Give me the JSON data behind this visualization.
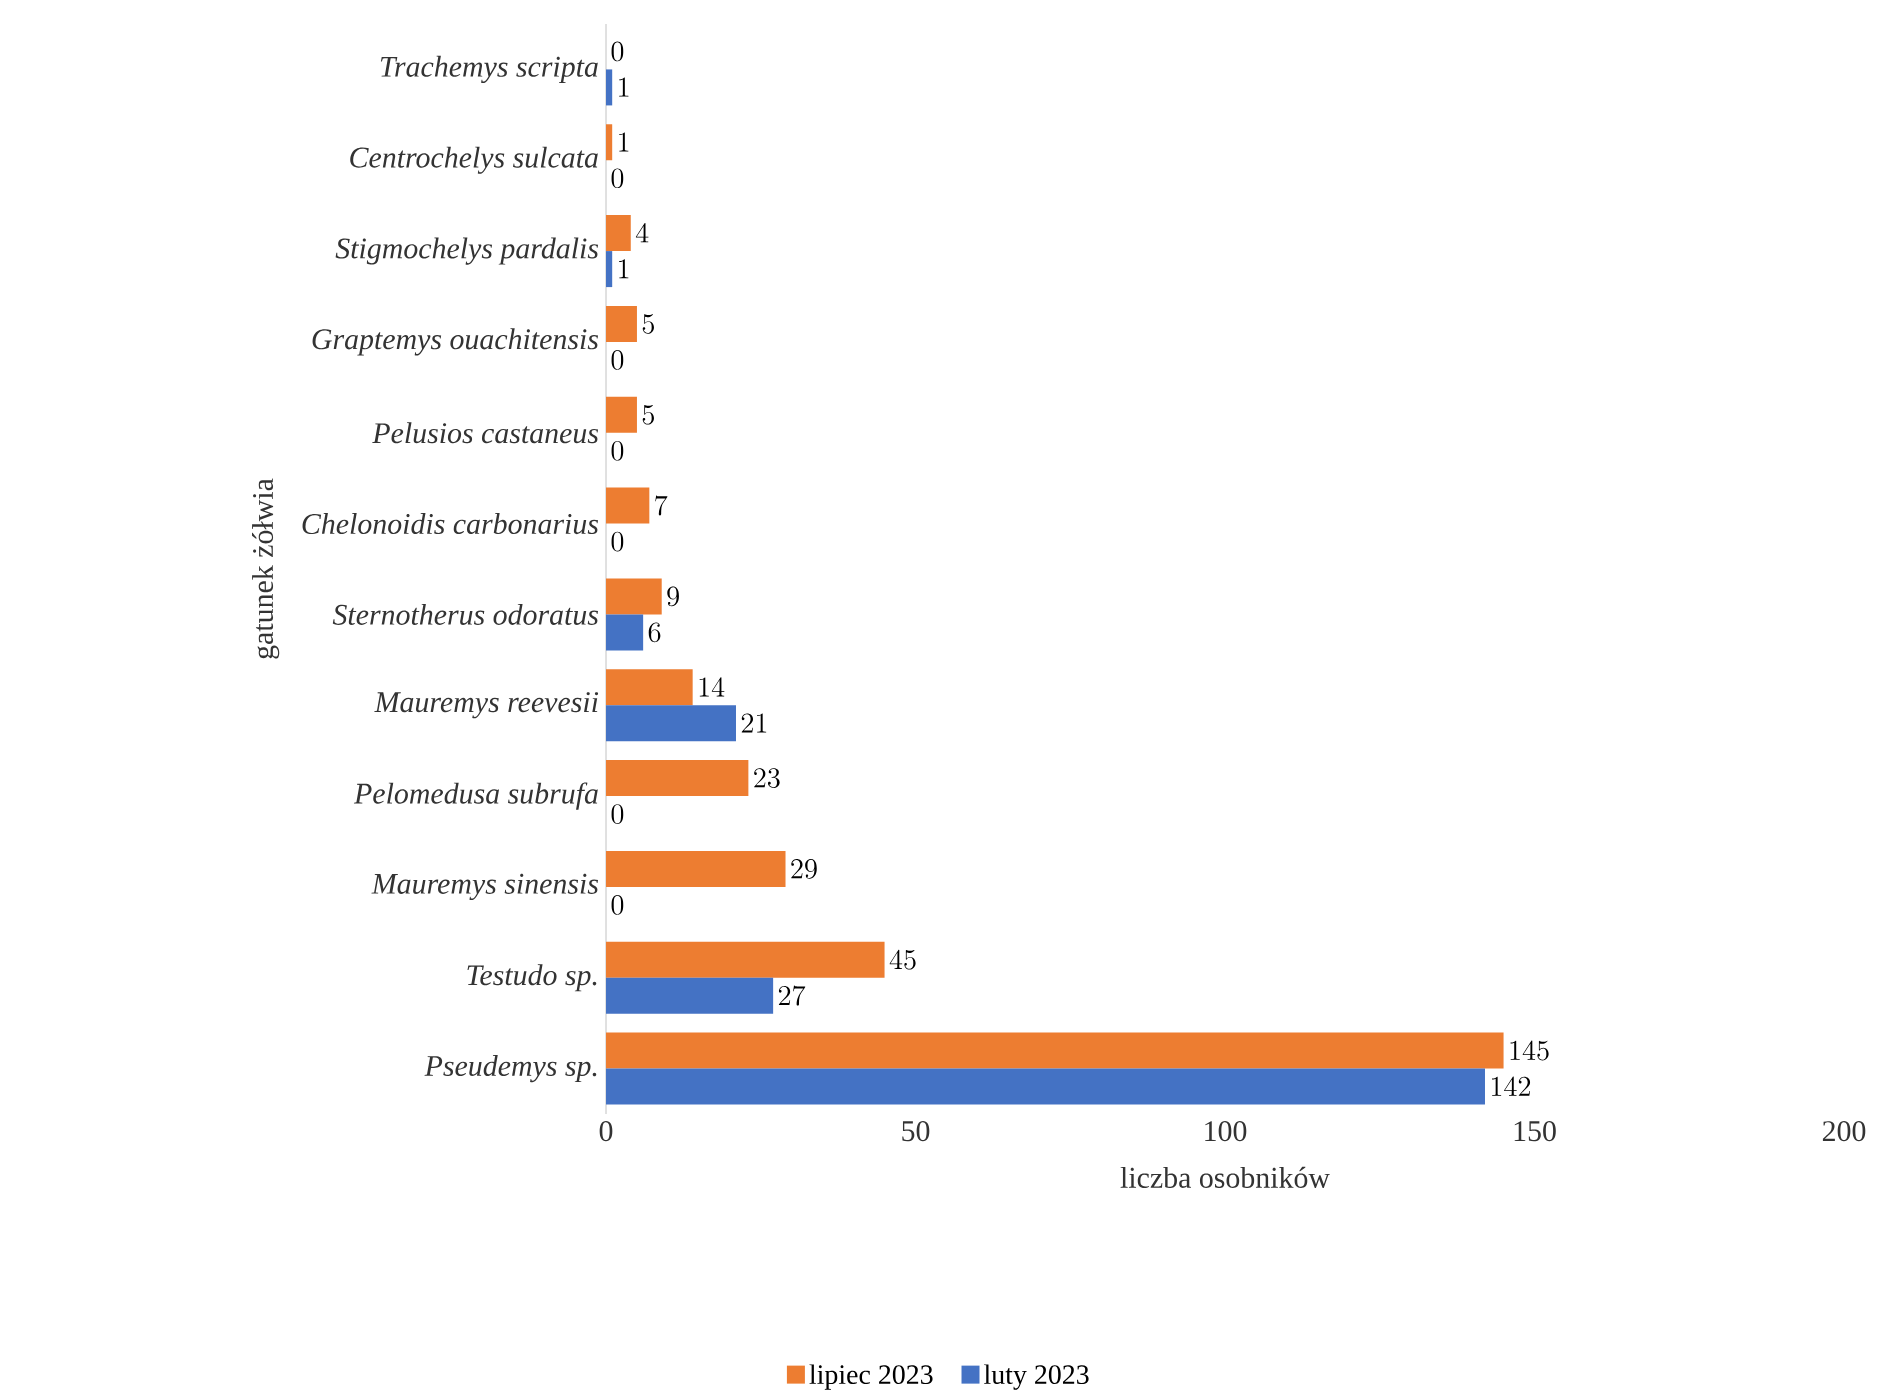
{
  "chart_data": {
    "type": "bar",
    "orientation": "horizontal",
    "xlabel": "liczba osobników",
    "ylabel": "gatunek żółwia",
    "categories": [
      "Trachemys scripta",
      "Centrochelys sulcata",
      "Stigmochelys pardalis",
      "Graptemys ouachitensis",
      "Pelusios castaneus",
      "Chelonoidis carbonarius",
      "Sternotherus odoratus",
      "Mauremys reevesii",
      "Pelomedusa subrufa",
      "Mauremys sinensis",
      "Testudo sp.",
      "Pseudemys sp."
    ],
    "series": [
      {
        "name": "lipiec 2023",
        "color": "#ed7d31",
        "values": [
          0,
          1,
          4,
          5,
          5,
          7,
          9,
          14,
          23,
          29,
          45,
          145
        ]
      },
      {
        "name": "luty 2023",
        "color": "#4472c4",
        "values": [
          1,
          0,
          1,
          0,
          0,
          0,
          6,
          21,
          0,
          0,
          27,
          142
        ]
      }
    ],
    "xlim": [
      0,
      200
    ],
    "xticks": [
      0,
      50,
      100,
      150,
      200
    ],
    "data_labels": true,
    "legend": "bottom",
    "grid": false
  }
}
